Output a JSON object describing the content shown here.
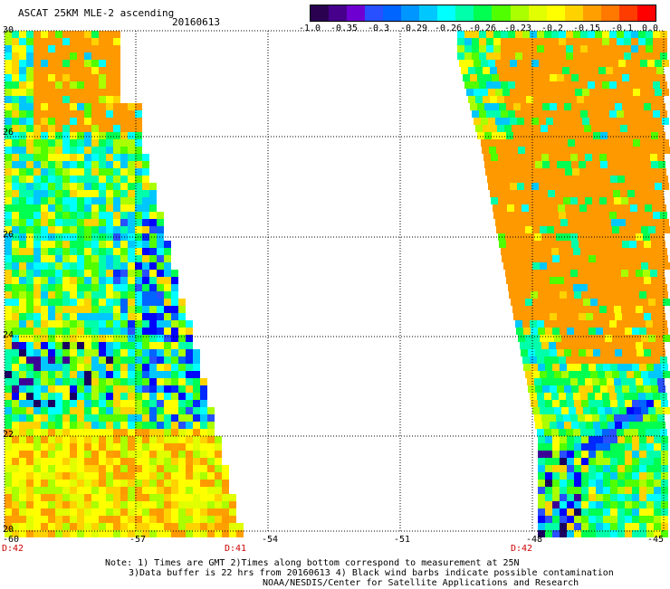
{
  "header": {
    "title": "ASCAT 25KM MLE-2 ascending",
    "date": "20160613"
  },
  "colorbar": {
    "colors": [
      "#2a0050",
      "#46008c",
      "#6e00d2",
      "#2850ff",
      "#0064ff",
      "#0096ff",
      "#00c8ff",
      "#00ffff",
      "#00ffaa",
      "#00ff50",
      "#50ff00",
      "#aaff00",
      "#e1ff00",
      "#ffff00",
      "#ffd200",
      "#ffa000",
      "#ff7800",
      "#ff3c00",
      "#ff0000"
    ],
    "tick_labels": [
      "-1.0",
      "-0.35",
      "-0.3",
      "-0.29",
      "-0.26",
      "-0.26",
      "-0.23",
      "-0.2",
      "-0.15",
      "-0.1",
      "0.0"
    ]
  },
  "map": {
    "lat_labels": [
      "30",
      "26",
      "26",
      "24",
      "22",
      "20"
    ],
    "lon_labels": [
      "-60",
      "-57",
      "-54",
      "-51",
      "-48",
      "-45"
    ],
    "time_labels": [
      "D:42",
      "D:41",
      "D:42"
    ]
  },
  "notes": {
    "line1": "Note: 1) Times are GMT 2)Times along bottom correspond to measurement at 25N",
    "line2": "3)Data buffer is 22 hrs from 20160613 4) Black wind barbs indicate possible contamination",
    "line3": "NOAA/NESDIS/Center for Satellite Applications and Research"
  }
}
